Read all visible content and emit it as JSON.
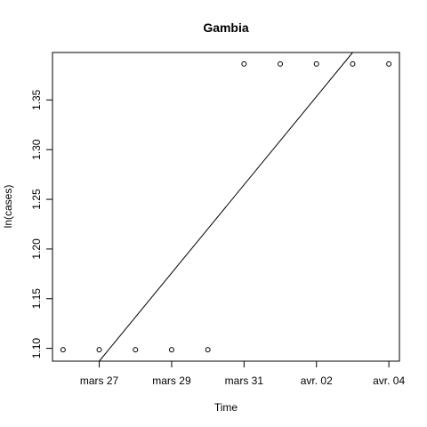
{
  "chart_data": {
    "type": "scatter",
    "title": "Gambia",
    "xlabel": "Time",
    "ylabel": "ln(cases)",
    "x_dates": [
      "2020-03-26",
      "2020-03-27",
      "2020-03-28",
      "2020-03-29",
      "2020-03-30",
      "2020-03-31",
      "2020-04-01",
      "2020-04-02",
      "2020-04-03",
      "2020-04-04"
    ],
    "y": [
      1.0986,
      1.0986,
      1.0986,
      1.0986,
      1.0986,
      1.3863,
      1.3863,
      1.3863,
      1.3863,
      1.3863
    ],
    "x_ticks": [
      "2020-03-27",
      "2020-03-29",
      "2020-03-31",
      "2020-04-02",
      "2020-04-04"
    ],
    "x_tick_labels": [
      "mars 27",
      "mars 29",
      "mars 31",
      "avr. 02",
      "avr. 04"
    ],
    "y_ticks": [
      1.1,
      1.15,
      1.2,
      1.25,
      1.3,
      1.35
    ],
    "y_tick_labels": [
      "1.10",
      "1.15",
      "1.20",
      "1.25",
      "1.30",
      "1.35"
    ],
    "xlim": [
      "2020-03-25T17:00",
      "2020-04-04T07:00"
    ],
    "ylim": [
      1.0871,
      1.3978
    ],
    "fit_line": {
      "start": [
        "2020-03-27",
        1.0871
      ],
      "end": [
        "2020-04-03",
        1.3978
      ]
    },
    "grid": false,
    "legend": "none"
  }
}
